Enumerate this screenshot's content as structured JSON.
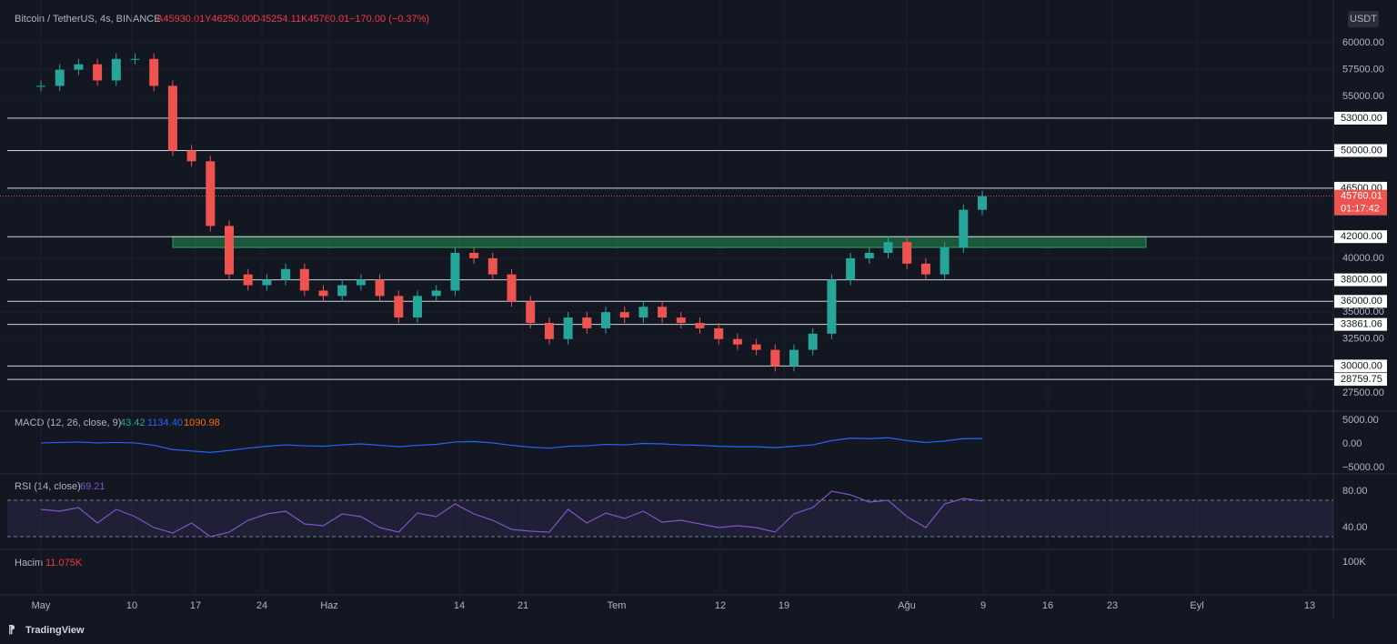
{
  "header": {
    "symbol": "Bitcoin / TetherUS, 4s, BINANCE",
    "open": "A45930.01",
    "high": "Y46250.00",
    "low": "D45254.11",
    "close": "K45760.01",
    "change": "−170.00 (−0.37%)"
  },
  "currency": "USDT",
  "price_axis": {
    "ticks": [
      {
        "value": 60000,
        "label": "60000.00"
      },
      {
        "value": 57500,
        "label": "57500.00"
      },
      {
        "value": 55000,
        "label": "55000.00"
      },
      {
        "value": 40000,
        "label": "40000.00"
      },
      {
        "value": 35000,
        "label": "35000.00"
      },
      {
        "value": 32500,
        "label": "32500.00"
      },
      {
        "value": 27500,
        "label": "27500.00"
      }
    ]
  },
  "levels": [
    {
      "value": 53000,
      "label": "53000.00"
    },
    {
      "value": 50000,
      "label": "50000.00"
    },
    {
      "value": 46500,
      "label": "46500.00"
    },
    {
      "value": 42000,
      "label": "42000.00"
    },
    {
      "value": 38000,
      "label": "38000.00"
    },
    {
      "value": 36000,
      "label": "36000.00"
    },
    {
      "value": 33861.06,
      "label": "33861.06"
    },
    {
      "value": 30000,
      "label": "30000.00"
    },
    {
      "value": 28759.75,
      "label": "28759.75"
    }
  ],
  "zone": [
    41000,
    42000
  ],
  "last_price": {
    "value": 45760.01,
    "label": "45760.01",
    "countdown": "01:17:42"
  },
  "price_series": {
    "days": [
      0,
      2,
      4,
      6,
      8,
      10,
      12,
      14,
      16,
      18,
      20,
      22,
      24,
      26,
      28,
      30,
      32,
      34,
      36,
      38,
      40,
      42,
      44,
      46,
      48,
      50,
      52,
      54,
      56,
      58,
      60,
      62,
      64,
      66,
      68,
      70,
      72,
      74,
      76,
      78,
      80,
      82,
      84,
      86,
      88,
      90,
      92,
      94,
      96,
      98,
      100
    ],
    "closes": [
      56000,
      57500,
      58000,
      56500,
      58500,
      58500,
      56000,
      50000,
      49000,
      43000,
      38500,
      37500,
      38000,
      39000,
      37000,
      36500,
      37500,
      38000,
      36500,
      34500,
      36500,
      37000,
      40500,
      40000,
      38500,
      36000,
      34000,
      32500,
      34500,
      33500,
      35000,
      34500,
      35500,
      34500,
      34000,
      33500,
      32500,
      32000,
      31500,
      30000,
      31500,
      33000,
      38000,
      40000,
      40500,
      41500,
      39500,
      38500,
      41000,
      44500,
      45760
    ]
  },
  "macd": {
    "title": "MACD (12, 26, close, 9)",
    "hist": "43.42",
    "macd_value": "1134.40",
    "signal_value": "1090.98",
    "ticks": [
      {
        "value": 5000,
        "label": "5000.00"
      },
      {
        "value": 0,
        "label": "0.00"
      },
      {
        "value": -5000,
        "label": "−5000.00"
      }
    ],
    "values": [
      200,
      300,
      400,
      200,
      300,
      200,
      -300,
      -1200,
      -1500,
      -1800,
      -1400,
      -900,
      -500,
      -200,
      -400,
      -500,
      -200,
      0,
      -300,
      -600,
      -300,
      -100,
      400,
      500,
      200,
      -300,
      -700,
      -900,
      -500,
      -400,
      -100,
      -200,
      100,
      0,
      -200,
      -300,
      -500,
      -600,
      -600,
      -800,
      -500,
      -200,
      700,
      1200,
      1100,
      1300,
      700,
      300,
      600,
      1100,
      1134.4
    ]
  },
  "rsi": {
    "title": "RSI (14, close)",
    "value": "69.21",
    "ticks": [
      {
        "value": 80,
        "label": "80.00"
      },
      {
        "value": 40,
        "label": "40.00"
      }
    ],
    "values": [
      60,
      58,
      62,
      45,
      60,
      52,
      40,
      34,
      45,
      30,
      35,
      48,
      55,
      58,
      44,
      42,
      55,
      52,
      40,
      35,
      56,
      52,
      66,
      55,
      48,
      38,
      36,
      35,
      60,
      45,
      56,
      50,
      58,
      46,
      48,
      44,
      40,
      42,
      40,
      35,
      55,
      62,
      80,
      76,
      68,
      70,
      52,
      40,
      66,
      72,
      69.21
    ]
  },
  "volume": {
    "title": "Hacim",
    "value": "11.075K",
    "tick": "100K"
  },
  "x_axis": [
    "May",
    "10",
    "17",
    "24",
    "Haz",
    "14",
    "21",
    "Tem",
    "12",
    "19",
    "Ağu",
    "9",
    "16",
    "23",
    "Eyl",
    "13"
  ],
  "footer": "TradingView"
}
